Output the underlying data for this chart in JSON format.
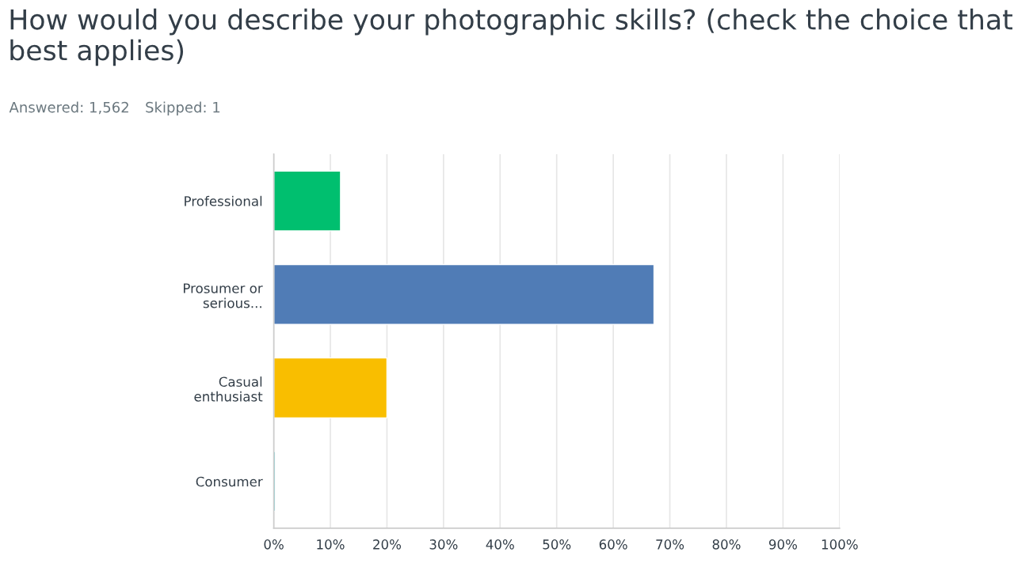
{
  "chart_data": {
    "type": "bar",
    "orientation": "horizontal",
    "title": "How would you describe your photographic skills? (check the choice that best applies)",
    "annotations": [
      "Answered: 1,562",
      "Skipped: 1"
    ],
    "categories": [
      "Professional",
      "Prosumer or\nserious...",
      "Casual\nenthusiast",
      "Consumer"
    ],
    "values": [
      11.8,
      67.2,
      20.0,
      0.3
    ],
    "colors": [
      "#00bf6f",
      "#507cb6",
      "#f9be00",
      "#6bc8cd"
    ],
    "xlim": [
      0,
      100
    ],
    "xticks": [
      {
        "value": 0,
        "label": "0%"
      },
      {
        "value": 10,
        "label": "10%"
      },
      {
        "value": 20,
        "label": "20%"
      },
      {
        "value": 30,
        "label": "30%"
      },
      {
        "value": 40,
        "label": "40%"
      },
      {
        "value": 50,
        "label": "50%"
      },
      {
        "value": 60,
        "label": "60%"
      },
      {
        "value": 70,
        "label": "70%"
      },
      {
        "value": 80,
        "label": "80%"
      },
      {
        "value": 90,
        "label": "90%"
      },
      {
        "value": 100,
        "label": "100%"
      }
    ],
    "grid": "x"
  }
}
